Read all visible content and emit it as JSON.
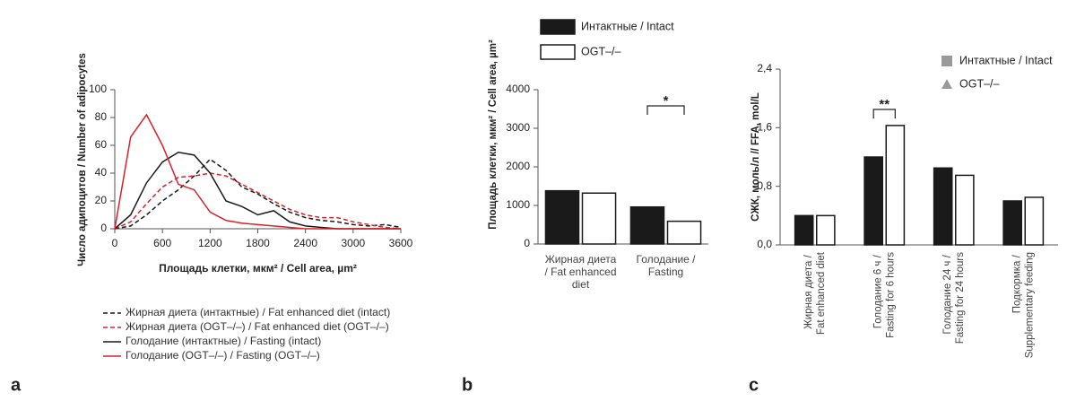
{
  "chart_data": [
    {
      "type": "line",
      "panel": "a",
      "ylabel": "Число адипоцитов / Number of adipocytes",
      "xlabel": "Площадь клетки, мкм² / Cell area, µm²",
      "x": [
        0,
        200,
        400,
        600,
        800,
        1000,
        1200,
        1400,
        1600,
        1800,
        2000,
        2200,
        2400,
        2600,
        2800,
        3000,
        3200,
        3400,
        3600
      ],
      "xlim": [
        0,
        3600
      ],
      "xticks": [
        0,
        600,
        1200,
        1800,
        2400,
        3000,
        3600
      ],
      "ylim": [
        0,
        100
      ],
      "yticks": [
        0,
        20,
        40,
        60,
        80,
        100
      ],
      "series": [
        {
          "name": "Жирная диета (интактные) / Fat enhanced diet (intact)",
          "color": "#1a1a1a",
          "dashed": true,
          "values": [
            0,
            2,
            10,
            20,
            28,
            38,
            50,
            42,
            30,
            25,
            18,
            12,
            8,
            6,
            5,
            3,
            2,
            3,
            1
          ]
        },
        {
          "name": "Жирная диета (OGT–/–) / Fat enhanced diet (OGT–/–)",
          "color": "#d6232a",
          "dashed": true,
          "values": [
            0,
            5,
            18,
            30,
            37,
            38,
            40,
            38,
            32,
            26,
            20,
            14,
            10,
            8,
            8,
            5,
            3,
            1,
            0
          ]
        },
        {
          "name": "Голодание (интактные) / Fasting (intact)",
          "color": "#1a1a1a",
          "dashed": false,
          "values": [
            0,
            10,
            33,
            48,
            55,
            53,
            40,
            20,
            16,
            10,
            13,
            5,
            2,
            1,
            0,
            0,
            0,
            0,
            0
          ]
        },
        {
          "name": "Голодание (OGT–/–) / Fasting (OGT–/–)",
          "color": "#d6232a",
          "dashed": false,
          "values": [
            0,
            66,
            82,
            60,
            32,
            28,
            12,
            6,
            4,
            3,
            2,
            1,
            0,
            0,
            0,
            0,
            0,
            0,
            0
          ]
        }
      ]
    },
    {
      "type": "bar",
      "panel": "b",
      "ylabel": "Площадь клетки, мкм² / Cell area, µm²",
      "categories": [
        "Жирная диета / Fat enhanced diet",
        "Голодание / Fasting"
      ],
      "ylim": [
        0,
        4000
      ],
      "yticks": [
        0,
        1000,
        2000,
        3000,
        4000
      ],
      "annotations": [
        "*"
      ],
      "series": [
        {
          "name": "Интактные / Intact",
          "color": "#1a1a1a",
          "values": [
            1380,
            960
          ]
        },
        {
          "name": "OGT–/–",
          "color": "#ffffff",
          "values": [
            1320,
            590
          ]
        }
      ]
    },
    {
      "type": "bar",
      "panel": "c",
      "ylabel": "СЖК, моль/л // FFA, mol/L",
      "categories": [
        "Жирная диета / Fat enhanced diet",
        "Голодание 6 ч / Fasting for 6 hours",
        "Голодание 24 ч / Fasting for 24 hours",
        "Подкормка / Supplementary feeding"
      ],
      "ylim": [
        0,
        2.4
      ],
      "yticks": [
        {
          "value": 0,
          "label": "0,0"
        },
        {
          "value": 0.8,
          "label": "0,8"
        },
        {
          "value": 1.6,
          "label": "1,6"
        },
        {
          "value": 2.4,
          "label": "2,4"
        }
      ],
      "annotations": [
        "**"
      ],
      "series": [
        {
          "name": "Интактные / Intact",
          "color": "#1a1a1a",
          "marker": "square",
          "values": [
            0.4,
            1.2,
            1.05,
            0.6
          ]
        },
        {
          "name": "OGT–/–",
          "color": "#ffffff",
          "marker": "triangle",
          "values": [
            0.4,
            1.63,
            0.95,
            0.65
          ]
        }
      ]
    }
  ]
}
